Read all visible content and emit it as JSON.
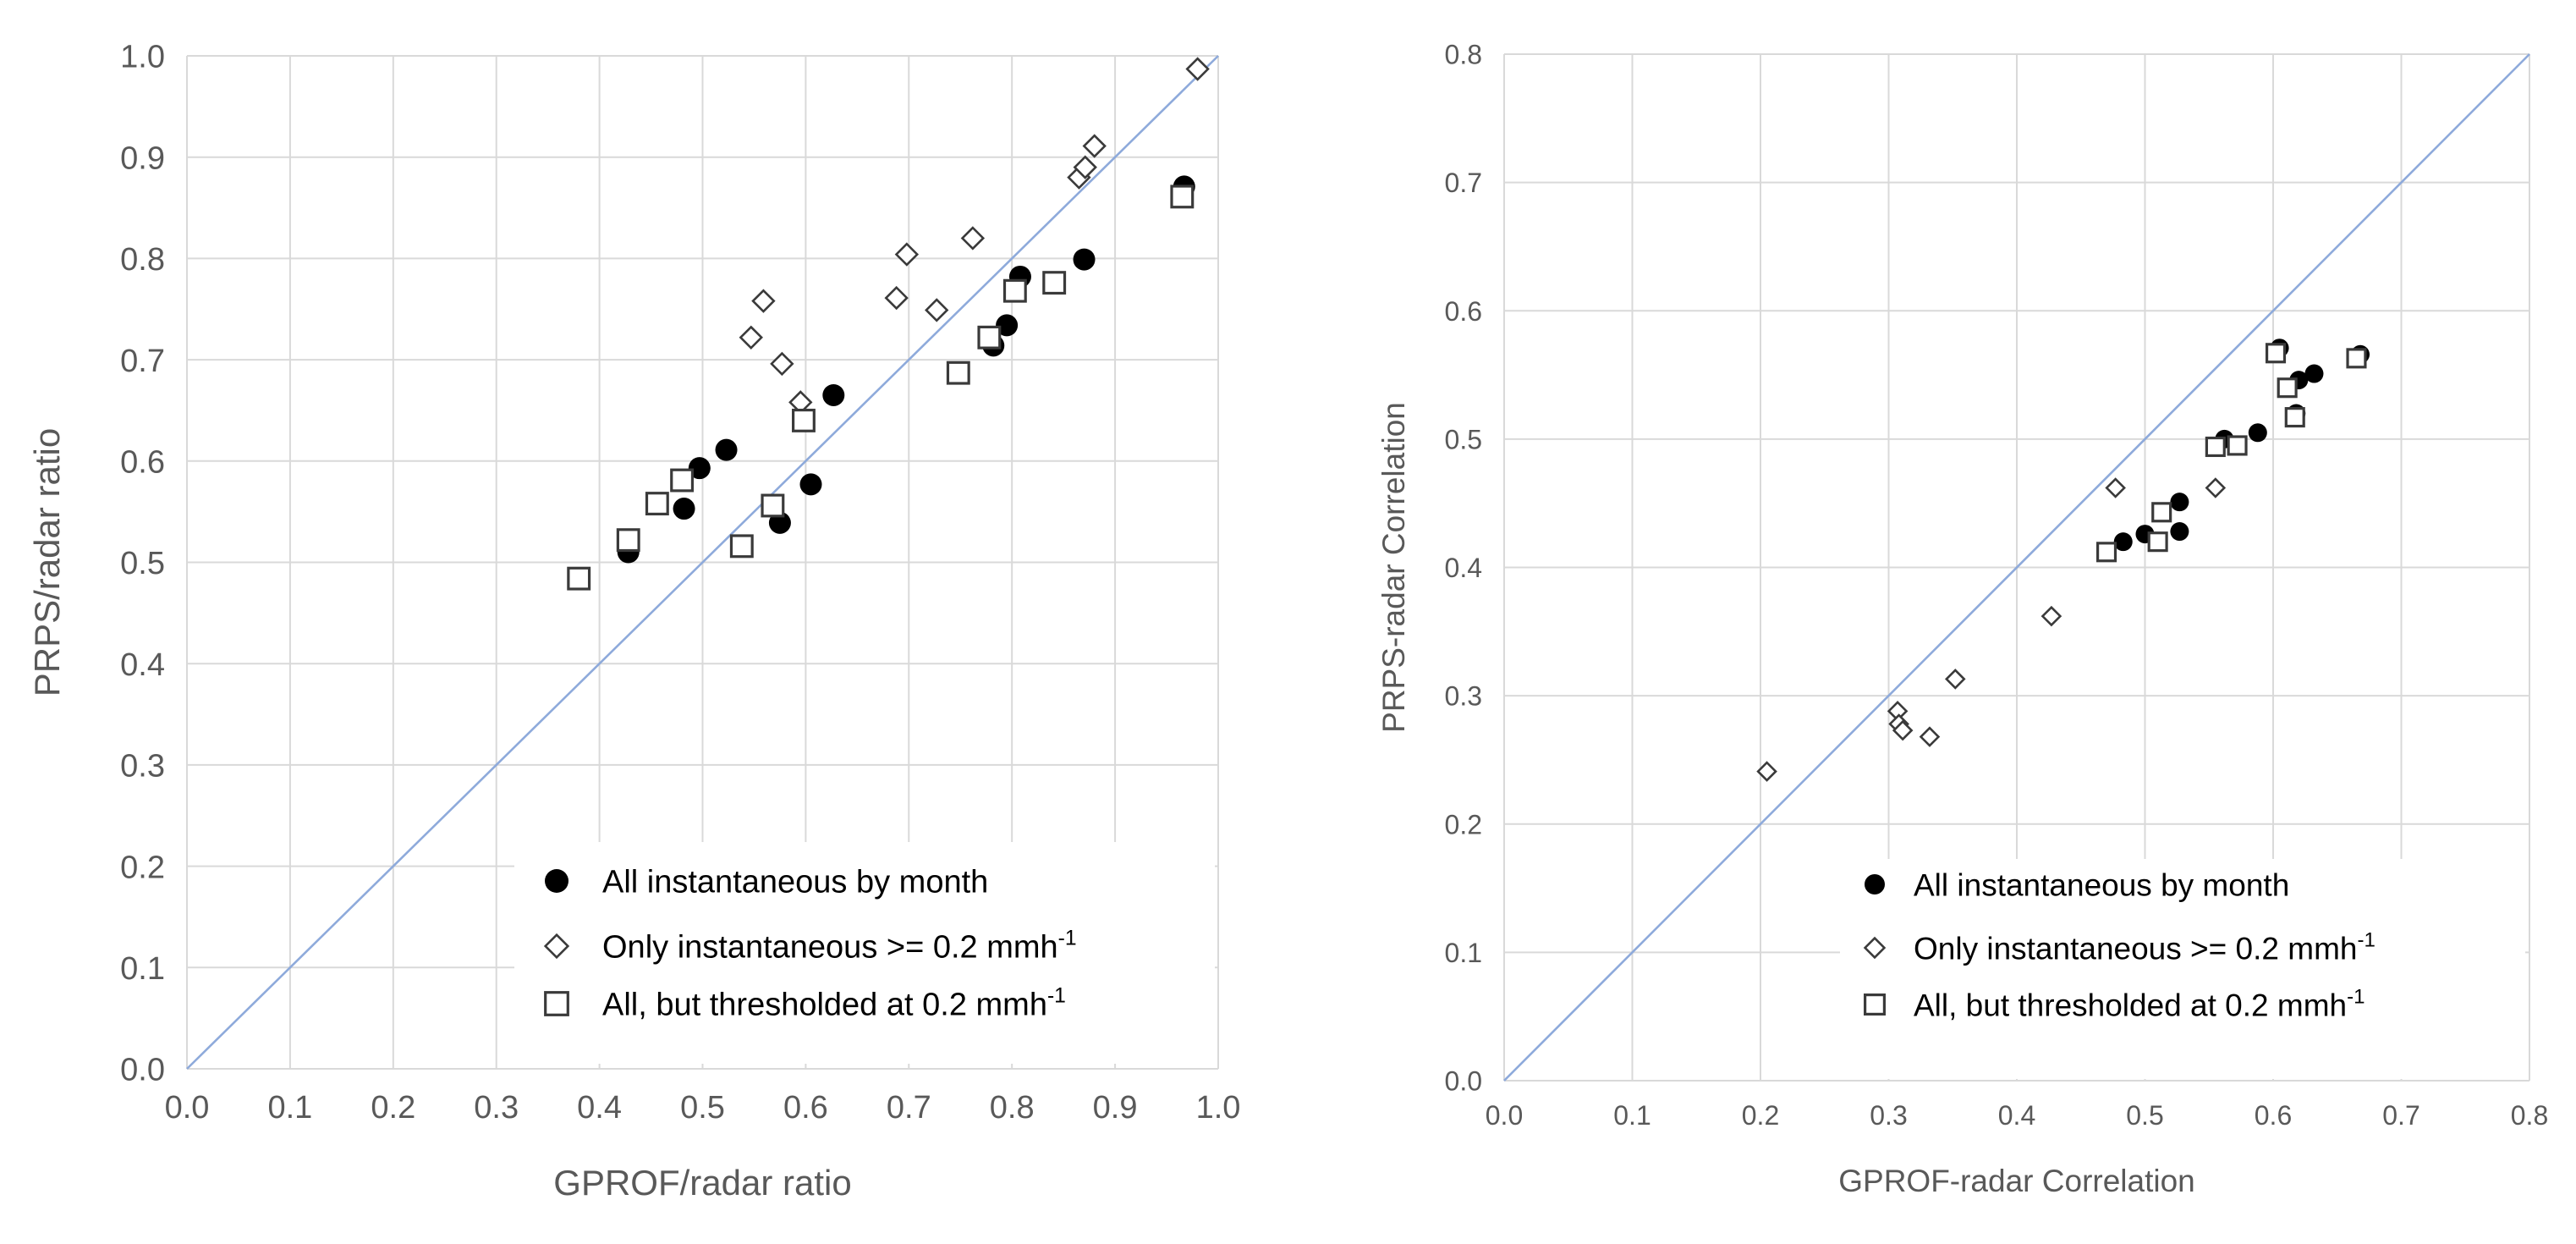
{
  "chart_data": [
    {
      "type": "scatter",
      "xlabel": "GPROF/radar ratio",
      "ylabel": "PRPS/radar ratio",
      "xlim": [
        0.0,
        1.0
      ],
      "ylim": [
        0.0,
        1.0
      ],
      "xticks": [
        "0.0",
        "0.1",
        "0.2",
        "0.3",
        "0.4",
        "0.5",
        "0.6",
        "0.7",
        "0.8",
        "0.9",
        "1.0"
      ],
      "yticks": [
        "0.0",
        "0.1",
        "0.2",
        "0.3",
        "0.4",
        "0.5",
        "0.6",
        "0.7",
        "0.8",
        "0.9",
        "1.0"
      ],
      "grid": true,
      "one_to_one_line": true,
      "legend_position": "bottom-right",
      "series": [
        {
          "name": "All instantaneous by month",
          "marker": "filled-circle",
          "points": [
            [
              0.428,
              0.51
            ],
            [
              0.482,
              0.553
            ],
            [
              0.497,
              0.593
            ],
            [
              0.523,
              0.611
            ],
            [
              0.575,
              0.539
            ],
            [
              0.605,
              0.577
            ],
            [
              0.627,
              0.665
            ],
            [
              0.782,
              0.714
            ],
            [
              0.795,
              0.734
            ],
            [
              0.808,
              0.782
            ],
            [
              0.87,
              0.799
            ],
            [
              0.967,
              0.871
            ]
          ]
        },
        {
          "name": "Only instantaneous >= 0.2 mmh",
          "marker": "open-diamond",
          "points": [
            [
              0.547,
              0.722
            ],
            [
              0.559,
              0.758
            ],
            [
              0.577,
              0.696
            ],
            [
              0.595,
              0.658
            ],
            [
              0.688,
              0.761
            ],
            [
              0.698,
              0.804
            ],
            [
              0.727,
              0.749
            ],
            [
              0.762,
              0.82
            ],
            [
              0.865,
              0.88
            ],
            [
              0.871,
              0.89
            ],
            [
              0.88,
              0.911
            ],
            [
              0.98,
              0.987
            ]
          ]
        },
        {
          "name": "All, but thresholded at 0.2 mmh",
          "marker": "open-square",
          "points": [
            [
              0.38,
              0.484
            ],
            [
              0.428,
              0.522
            ],
            [
              0.456,
              0.558
            ],
            [
              0.48,
              0.581
            ],
            [
              0.538,
              0.516
            ],
            [
              0.568,
              0.556
            ],
            [
              0.598,
              0.64
            ],
            [
              0.748,
              0.687
            ],
            [
              0.778,
              0.722
            ],
            [
              0.803,
              0.768
            ],
            [
              0.841,
              0.776
            ],
            [
              0.965,
              0.861
            ]
          ]
        }
      ]
    },
    {
      "type": "scatter",
      "xlabel": "GPROF-radar Correlation",
      "ylabel": "PRPS-radar Correlation",
      "xlim": [
        0.0,
        0.8
      ],
      "ylim": [
        0.0,
        0.8
      ],
      "xticks": [
        "0.0",
        "0.1",
        "0.2",
        "0.3",
        "0.4",
        "0.5",
        "0.6",
        "0.7",
        "0.8"
      ],
      "yticks": [
        "0.0",
        "0.1",
        "0.2",
        "0.3",
        "0.4",
        "0.5",
        "0.6",
        "0.7",
        "0.8"
      ],
      "grid": true,
      "one_to_one_line": true,
      "legend_position": "bottom-right",
      "series": [
        {
          "name": "All instantaneous by month",
          "marker": "filled-circle",
          "points": [
            [
              0.483,
              0.42
            ],
            [
              0.5,
              0.426
            ],
            [
              0.527,
              0.451
            ],
            [
              0.527,
              0.428
            ],
            [
              0.562,
              0.5
            ],
            [
              0.588,
              0.505
            ],
            [
              0.605,
              0.571
            ],
            [
              0.618,
              0.52
            ],
            [
              0.62,
              0.546
            ],
            [
              0.632,
              0.551
            ],
            [
              0.668,
              0.566
            ]
          ]
        },
        {
          "name": "Only instantaneous >= 0.2 mmh",
          "marker": "open-diamond",
          "points": [
            [
              0.205,
              0.241
            ],
            [
              0.307,
              0.288
            ],
            [
              0.308,
              0.278
            ],
            [
              0.311,
              0.273
            ],
            [
              0.332,
              0.268
            ],
            [
              0.352,
              0.313
            ],
            [
              0.427,
              0.362
            ],
            [
              0.477,
              0.462
            ],
            [
              0.555,
              0.462
            ]
          ]
        },
        {
          "name": "All, but thresholded at 0.2 mmh",
          "marker": "open-square",
          "points": [
            [
              0.47,
              0.412
            ],
            [
              0.51,
              0.42
            ],
            [
              0.513,
              0.443
            ],
            [
              0.555,
              0.494
            ],
            [
              0.572,
              0.495
            ],
            [
              0.602,
              0.567
            ],
            [
              0.611,
              0.54
            ],
            [
              0.617,
              0.517
            ],
            [
              0.665,
              0.563
            ]
          ]
        }
      ]
    }
  ],
  "legend": {
    "superscript": "-1"
  }
}
